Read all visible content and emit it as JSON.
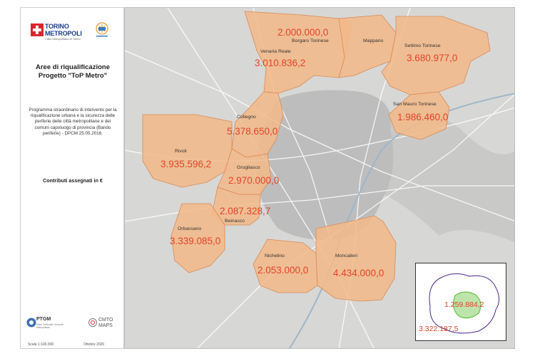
{
  "sidebar": {
    "logo_torino": {
      "line1": "TORINO",
      "line2": "METROPOLI",
      "sub": "Città metropolitana di Torino"
    },
    "title_line1": "Aree di riqualificazione",
    "title_line2": "Progetto \"ToP Metro\"",
    "description": "Programma straordinario di intervento per la riqualificazione urbana e la sicurezza delle periferie delle città metropolitane e dei comuni capoluogo di provincia (Bando periferie) - DPCM 25.05.2016.",
    "contributi": "Contributi assegnati in €",
    "logo_ptgm": {
      "name": "PTGM",
      "sub": "Piano Territoriale Generale Metropolitano"
    },
    "logo_cmto": {
      "line1": "CMTO",
      "line2": "MAPS"
    },
    "scale": "Scala 1:100.000",
    "date": "Ottobre 2020"
  },
  "map": {
    "areas": [
      {
        "name": "Borgaro Torinese",
        "value": "2.000.000,0"
      },
      {
        "name": "Mappano",
        "value": ""
      },
      {
        "name": "Venaria Reale",
        "value": "3.010.836,2"
      },
      {
        "name": "Settimo Torinese",
        "value": "3.680.977,0"
      },
      {
        "name": "San Mauro Torinese",
        "value": "1.986.460,0"
      },
      {
        "name": "Collegno",
        "value": "5.378.650,0"
      },
      {
        "name": "Rivoli",
        "value": "3.935.596,2"
      },
      {
        "name": "Grugliasco",
        "value": "2.970.000,0"
      },
      {
        "name": "Beinasco",
        "value": "2.087.328,7"
      },
      {
        "name": "Orbassano",
        "value": "3.339.085,0"
      },
      {
        "name": "Nichelino",
        "value": "2.053.000,0"
      },
      {
        "name": "Moncalieri",
        "value": "4.434.000,0"
      }
    ],
    "colors": {
      "area_fill": "#f3b98a",
      "area_stroke": "#d98a55",
      "background": "#d7d7d5",
      "city": "#bdbdbd",
      "value_text": "#e0442a",
      "inset_boundary": "#4b2a8a",
      "inset_focus": "#6ac045"
    },
    "inset": {
      "value1": "1.259.884,2",
      "value2": "3.322.187,5"
    }
  }
}
